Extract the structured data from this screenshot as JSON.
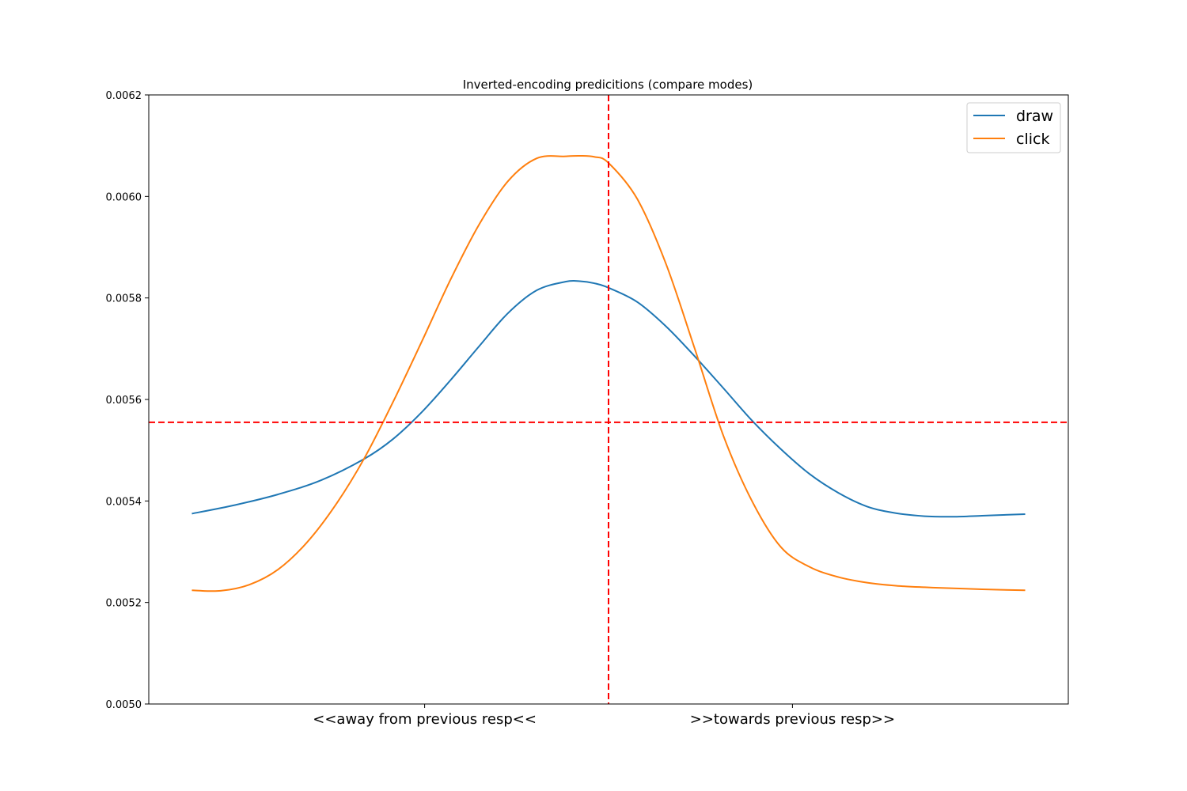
{
  "chart_data": {
    "type": "line",
    "title": "Inverted-encoding predicitions (compare modes)",
    "xlabel": "",
    "ylabel": "",
    "xlim": [
      -3.2,
      3.2
    ],
    "ylim": [
      0.005,
      0.0062
    ],
    "yticks": [
      "0.0050",
      "0.0052",
      "0.0054",
      "0.0056",
      "0.0058",
      "0.0060",
      "0.0062"
    ],
    "xtick_labels": [
      {
        "x": -1.28,
        "label": "<<away from previous resp<<"
      },
      {
        "x": 1.28,
        "label": ">>towards previous resp>>"
      }
    ],
    "reference_lines": [
      {
        "orientation": "vertical",
        "value": 0.0,
        "style": "dashed",
        "color": "#ff0000"
      },
      {
        "orientation": "horizontal",
        "value": 0.005555,
        "style": "dashed",
        "color": "#ff0000"
      }
    ],
    "legend": {
      "position": "top-right"
    },
    "grid": false,
    "series": [
      {
        "name": "draw",
        "color": "#1f77b4",
        "x": [
          -2.9,
          -2.6,
          -2.3,
          -2.0,
          -1.7,
          -1.5,
          -1.3,
          -1.1,
          -0.9,
          -0.7,
          -0.5,
          -0.3,
          -0.2,
          -0.1,
          0.0,
          0.2,
          0.4,
          0.6,
          0.8,
          1.0,
          1.2,
          1.4,
          1.6,
          1.8,
          2.0,
          2.2,
          2.4,
          2.6,
          2.8,
          2.9
        ],
        "values": [
          0.005375,
          0.005392,
          0.005413,
          0.005441,
          0.005483,
          0.005522,
          0.005575,
          0.005638,
          0.005705,
          0.00577,
          0.005815,
          0.005832,
          0.005833,
          0.005829,
          0.00582,
          0.005792,
          0.005744,
          0.005685,
          0.005622,
          0.005558,
          0.005502,
          0.005453,
          0.005416,
          0.005389,
          0.005376,
          0.00537,
          0.005369,
          0.005371,
          0.005373,
          0.005374
        ]
      },
      {
        "name": "click",
        "color": "#ff7f0e",
        "x": [
          -2.9,
          -2.7,
          -2.5,
          -2.3,
          -2.1,
          -1.9,
          -1.7,
          -1.5,
          -1.3,
          -1.1,
          -0.9,
          -0.7,
          -0.5,
          -0.3,
          -0.2,
          -0.1,
          0.0,
          0.2,
          0.4,
          0.6,
          0.8,
          1.0,
          1.2,
          1.4,
          1.6,
          1.8,
          2.0,
          2.2,
          2.4,
          2.6,
          2.9
        ],
        "values": [
          0.005224,
          0.005223,
          0.005235,
          0.005265,
          0.005318,
          0.005392,
          0.005484,
          0.005595,
          0.005714,
          0.005836,
          0.005945,
          0.00603,
          0.006075,
          0.006079,
          0.00608,
          0.006078,
          0.006066,
          0.005995,
          0.005867,
          0.0057,
          0.005528,
          0.005399,
          0.005309,
          0.00527,
          0.00525,
          0.005239,
          0.005233,
          0.00523,
          0.005228,
          0.005226,
          0.005224
        ]
      }
    ]
  }
}
